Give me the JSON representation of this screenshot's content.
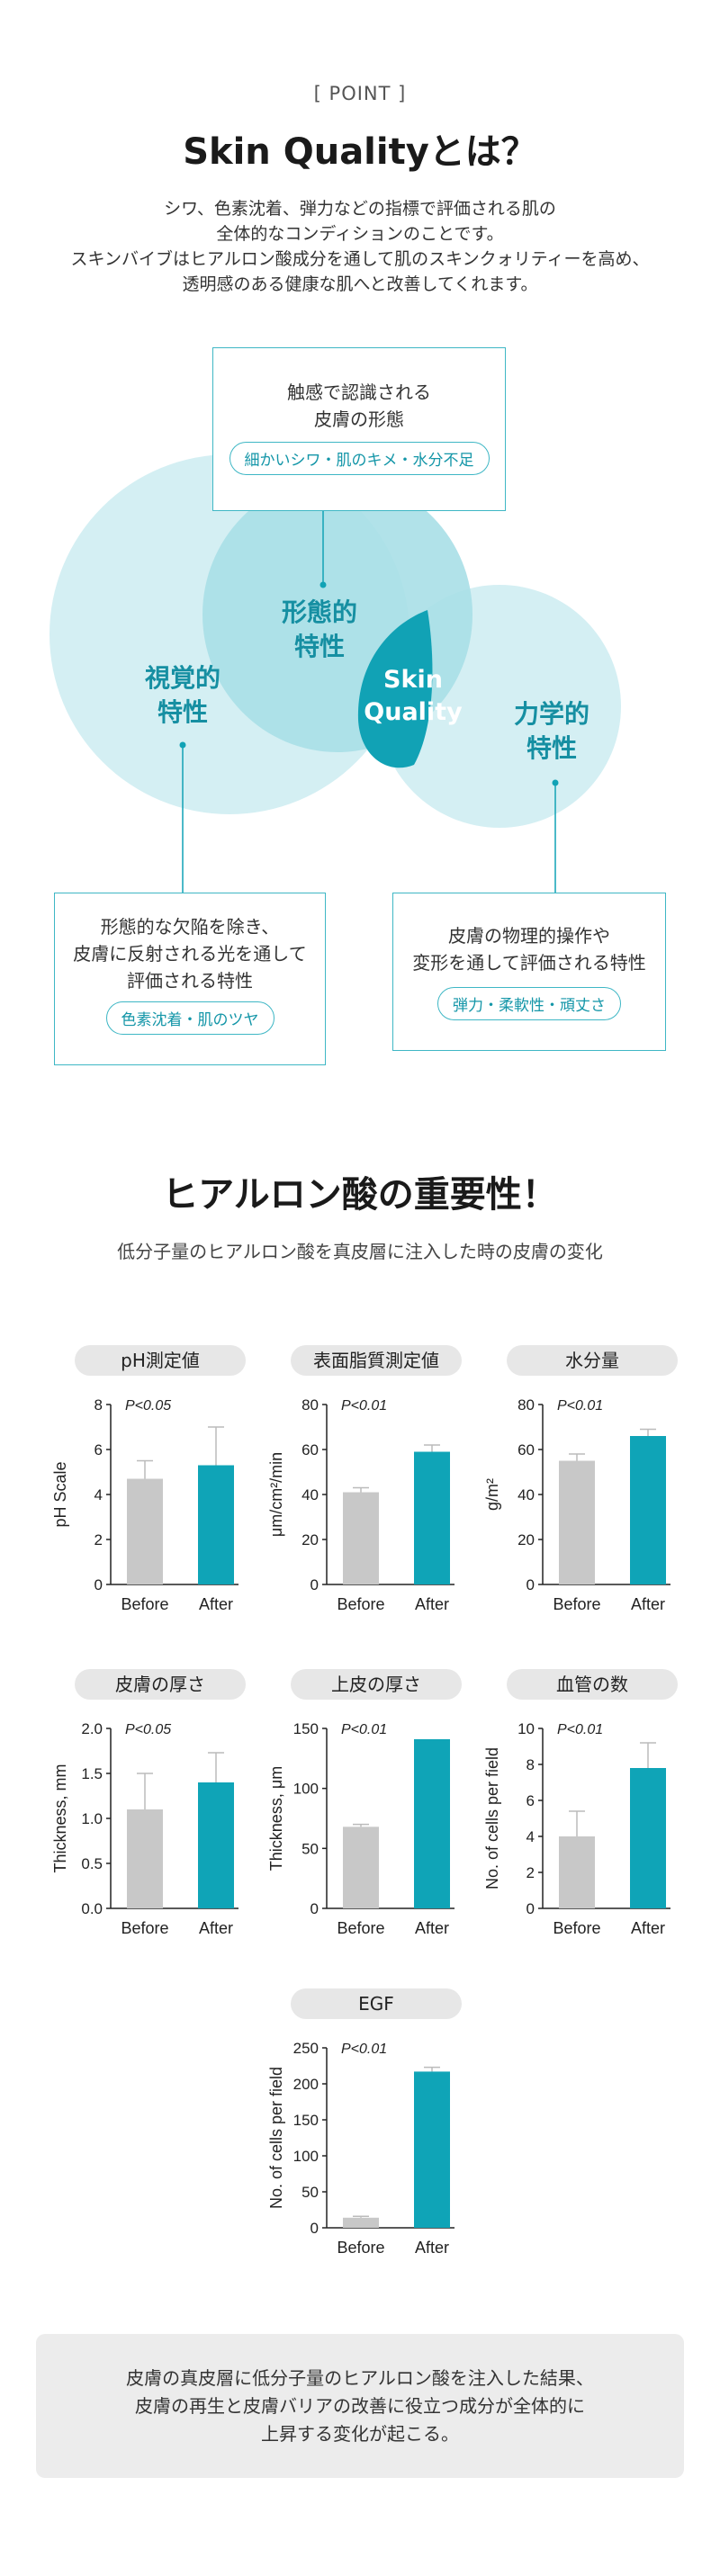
{
  "header": {
    "point_label": "[ POINT ]",
    "title": "Skin Qualityとは？",
    "intro_lines": [
      "シワ、色素沈着、弾力などの指標で評価される肌の",
      "全体的なコンディションのことです。",
      "スキンバイブはヒアルロン酸成分を通して肌のスキンクォリティーを高め、",
      "透明感のある健康な肌へと改善してくれます。"
    ]
  },
  "venn": {
    "top_box": {
      "lines": [
        "触感で認識される",
        "皮膚の形態"
      ],
      "pill": "細かいシワ・肌のキメ・水分不足"
    },
    "left_box": {
      "lines": [
        "形態的な欠陥を除き、",
        "皮膚に反射される光を通して",
        "評価される特性"
      ],
      "pill": "色素沈着・肌のツヤ"
    },
    "right_box": {
      "lines": [
        "皮膚の物理的操作や",
        "変形を通して評価される特性"
      ],
      "pill": "弾力・柔軟性・頑丈さ"
    },
    "labels": {
      "morphological": [
        "形態的",
        "特性"
      ],
      "visual": [
        "視覚的",
        "特性"
      ],
      "mechanical": [
        "力学的",
        "特性"
      ],
      "center": [
        "Skin",
        "Quality"
      ]
    },
    "colors": {
      "light": "#d4eff3",
      "mid": "#a9dfe7",
      "dark": "#11a2b5"
    }
  },
  "section2": {
    "title": "ヒアルロン酸の重要性！",
    "subtitle": "低分子量のヒアルロン酸を真皮層に注入した時の皮膚の変化"
  },
  "chart_data": [
    {
      "type": "bar",
      "title": "pH測定値",
      "categories": [
        "Before",
        "After"
      ],
      "values": [
        4.7,
        5.3
      ],
      "errors": [
        0.8,
        1.7
      ],
      "ylabel": "pH Scale",
      "ylim": [
        0,
        8
      ],
      "ticks": [
        "0",
        "2",
        "4",
        "6",
        "8"
      ],
      "pvalue": "P<0.05",
      "colors": [
        "#c8c8c8",
        "#0fa4b7"
      ]
    },
    {
      "type": "bar",
      "title": "表面脂質測定値",
      "categories": [
        "Before",
        "After"
      ],
      "values": [
        41,
        59
      ],
      "errors": [
        2,
        3
      ],
      "ylabel": "μm/cm²/min",
      "ylim": [
        0,
        80
      ],
      "ticks": [
        "0",
        "20",
        "40",
        "60",
        "80"
      ],
      "pvalue": "P<0.01",
      "colors": [
        "#c8c8c8",
        "#0fa4b7"
      ]
    },
    {
      "type": "bar",
      "title": "水分量",
      "categories": [
        "Before",
        "After"
      ],
      "values": [
        55,
        66
      ],
      "errors": [
        3,
        3
      ],
      "ylabel": "g/m²",
      "ylim": [
        0,
        80
      ],
      "ticks": [
        "0",
        "20",
        "40",
        "60",
        "80"
      ],
      "pvalue": "P<0.01",
      "colors": [
        "#c8c8c8",
        "#0fa4b7"
      ]
    },
    {
      "type": "bar",
      "title": "皮膚の厚さ",
      "categories": [
        "Before",
        "After"
      ],
      "values": [
        1.1,
        1.4
      ],
      "errors": [
        0.4,
        0.33
      ],
      "ylabel": "Thickness, mm",
      "ylim": [
        0,
        2.0
      ],
      "ticks": [
        "0.0",
        "0.5",
        "1.0",
        "1.5",
        "2.0"
      ],
      "pvalue": "P<0.05",
      "colors": [
        "#c8c8c8",
        "#0fa4b7"
      ]
    },
    {
      "type": "bar",
      "title": "上皮の厚さ",
      "categories": [
        "Before",
        "After"
      ],
      "values": [
        68,
        141
      ],
      "errors": [
        2,
        0
      ],
      "ylabel": "Thickness, μm",
      "ylim": [
        0,
        150
      ],
      "ticks": [
        "0",
        "50",
        "100",
        "150"
      ],
      "pvalue": "P<0.01",
      "colors": [
        "#c8c8c8",
        "#0fa4b7"
      ]
    },
    {
      "type": "bar",
      "title": "血管の数",
      "categories": [
        "Before",
        "After"
      ],
      "values": [
        4.0,
        7.8
      ],
      "errors": [
        1.4,
        1.4
      ],
      "ylabel": "No. of cells per field",
      "ylim": [
        0,
        10
      ],
      "ticks": [
        "0",
        "2",
        "4",
        "6",
        "8",
        "10"
      ],
      "pvalue": "P<0.01",
      "colors": [
        "#c8c8c8",
        "#0fa4b7"
      ]
    },
    {
      "type": "bar",
      "title": "EGF",
      "categories": [
        "Before",
        "After"
      ],
      "values": [
        14,
        217
      ],
      "errors": [
        2,
        6
      ],
      "ylabel": "No. of cells per field",
      "ylim": [
        0,
        250
      ],
      "ticks": [
        "0",
        "50",
        "100",
        "150",
        "200",
        "250"
      ],
      "pvalue": "P<0.01",
      "colors": [
        "#c8c8c8",
        "#0fa4b7"
      ]
    }
  ],
  "summary_lines": [
    "皮膚の真皮層に低分子量のヒアルロン酸を注入した結果、",
    "皮膚の再生と皮膚バリアの改善に役立つ成分が全体的に",
    "上昇する変化が起こる。"
  ]
}
